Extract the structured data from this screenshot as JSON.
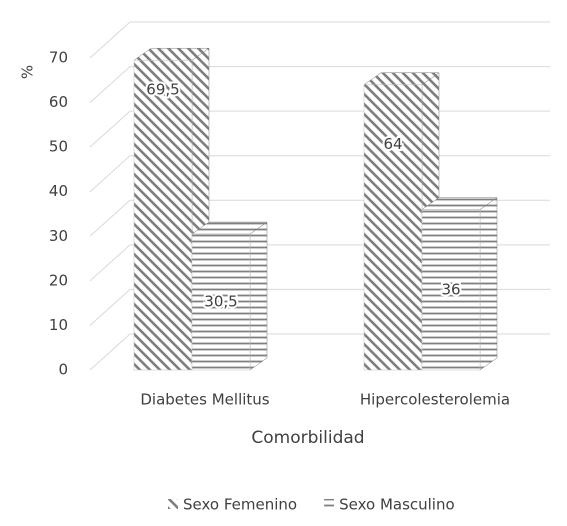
{
  "chart_data": {
    "type": "bar3d",
    "y_label": "%",
    "x_label": "Comorbilidad",
    "categories": [
      "Diabetes Mellitus",
      "Hipercolesterolemia"
    ],
    "series": [
      {
        "name": "Sexo Femenino",
        "color": "#7f7f7f",
        "pattern": "diagonal",
        "values": [
          69.5,
          64
        ],
        "value_labels": [
          "69,5",
          "64"
        ]
      },
      {
        "name": "Sexo Masculino",
        "color": "#7f7f7f",
        "pattern": "horizontal",
        "values": [
          30.5,
          36
        ],
        "value_labels": [
          "30,5",
          "36"
        ]
      }
    ],
    "ylim": [
      0,
      70
    ],
    "yticks": [
      0,
      10,
      20,
      30,
      40,
      50,
      60,
      70
    ],
    "grid": true,
    "legend": "bottom"
  }
}
